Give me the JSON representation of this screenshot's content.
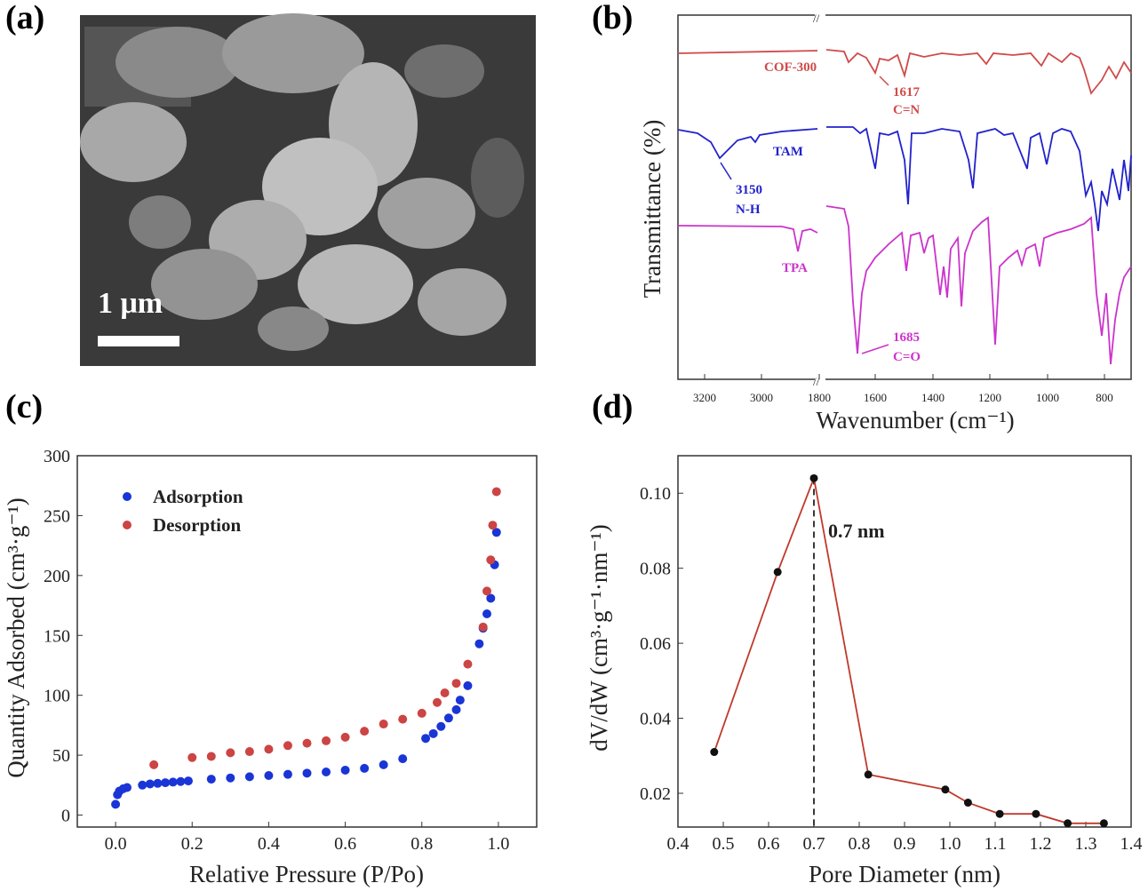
{
  "panels": {
    "a": {
      "label": "(a)",
      "scale_bar": "1 μm"
    },
    "b": {
      "label": "(b)"
    },
    "c": {
      "label": "(c)"
    },
    "d": {
      "label": "(d)"
    }
  },
  "chart_data": [
    {
      "panel": "b",
      "type": "line",
      "ylabel": "Transmittance (%)",
      "xlabel": "Wavenumber (cm⁻¹)",
      "axis_break": "//",
      "x_ticks_left": [
        "3200",
        "3000",
        "1800"
      ],
      "x_ticks_right": [
        "1600",
        "1400",
        "1200",
        "1000",
        "800"
      ],
      "series": [
        {
          "name": "COF-300",
          "color": "#d04a4a",
          "annotations": [
            {
              "text": "1617",
              "sub": "C=N"
            }
          ]
        },
        {
          "name": "TAM",
          "color": "#2222cc",
          "annotations": [
            {
              "text": "3150",
              "sub": "N-H"
            }
          ]
        },
        {
          "name": "TPA",
          "color": "#cc33cc",
          "annotations": [
            {
              "text": "1685",
              "sub": "C=O"
            }
          ]
        }
      ]
    },
    {
      "panel": "c",
      "type": "scatter",
      "xlabel": "Relative Pressure (P/Po)",
      "ylabel": "Quantity Adsorbed (cm³·g⁻¹)",
      "xlim": [
        -0.1,
        1.1
      ],
      "ylim": [
        -10,
        300
      ],
      "x_ticks": [
        "0.0",
        "0.2",
        "0.4",
        "0.6",
        "0.8",
        "1.0"
      ],
      "y_ticks": [
        "0",
        "50",
        "100",
        "150",
        "200",
        "250",
        "300"
      ],
      "legend_position": "top-left",
      "series": [
        {
          "name": "Adsorption",
          "color": "#1a35d6",
          "points": [
            [
              0.0,
              9
            ],
            [
              0.005,
              17
            ],
            [
              0.01,
              20
            ],
            [
              0.02,
              22
            ],
            [
              0.03,
              23
            ],
            [
              0.07,
              25
            ],
            [
              0.09,
              26
            ],
            [
              0.11,
              26.5
            ],
            [
              0.13,
              27
            ],
            [
              0.15,
              27.5
            ],
            [
              0.17,
              28
            ],
            [
              0.19,
              28.5
            ],
            [
              0.25,
              30
            ],
            [
              0.3,
              31
            ],
            [
              0.35,
              32
            ],
            [
              0.4,
              33
            ],
            [
              0.45,
              34
            ],
            [
              0.5,
              35
            ],
            [
              0.55,
              36
            ],
            [
              0.6,
              37.5
            ],
            [
              0.65,
              39
            ],
            [
              0.7,
              42
            ],
            [
              0.75,
              47
            ],
            [
              0.81,
              64
            ],
            [
              0.83,
              68
            ],
            [
              0.85,
              74
            ],
            [
              0.87,
              81
            ],
            [
              0.89,
              88
            ],
            [
              0.9,
              96
            ],
            [
              0.92,
              108
            ],
            [
              0.95,
              143
            ],
            [
              0.96,
              156
            ],
            [
              0.97,
              168
            ],
            [
              0.98,
              181
            ],
            [
              0.99,
              209
            ],
            [
              0.995,
              236
            ]
          ]
        },
        {
          "name": "Desorption",
          "color": "#cc4444",
          "points": [
            [
              0.1,
              42
            ],
            [
              0.2,
              48
            ],
            [
              0.25,
              49
            ],
            [
              0.3,
              52
            ],
            [
              0.35,
              53
            ],
            [
              0.4,
              55
            ],
            [
              0.45,
              58
            ],
            [
              0.5,
              60
            ],
            [
              0.55,
              62
            ],
            [
              0.6,
              65
            ],
            [
              0.65,
              70
            ],
            [
              0.7,
              76
            ],
            [
              0.75,
              80
            ],
            [
              0.8,
              85
            ],
            [
              0.84,
              94
            ],
            [
              0.86,
              102
            ],
            [
              0.89,
              110
            ],
            [
              0.92,
              126
            ],
            [
              0.96,
              157
            ],
            [
              0.97,
              187
            ],
            [
              0.98,
              213
            ],
            [
              0.985,
              242
            ],
            [
              0.995,
              270
            ]
          ]
        }
      ]
    },
    {
      "panel": "d",
      "type": "line",
      "xlabel": "Pore Diameter (nm)",
      "ylabel": "dV/dW (cm³·g⁻¹·nm⁻¹)",
      "xlim": [
        0.4,
        1.4
      ],
      "ylim": [
        0.011,
        0.11
      ],
      "x_ticks": [
        "0.4",
        "0.5",
        "0.6",
        "0.7",
        "0.8",
        "0.9",
        "1.0",
        "1.1",
        "1.2",
        "1.3",
        "1.4"
      ],
      "y_ticks": [
        "0.02",
        "0.04",
        "0.06",
        "0.08",
        "0.10"
      ],
      "peak_label": "0.7 nm",
      "peak_x": 0.7,
      "series": [
        {
          "name": "",
          "color": "#c0392b",
          "points": [
            [
              0.48,
              0.031
            ],
            [
              0.62,
              0.079
            ],
            [
              0.7,
              0.104
            ],
            [
              0.82,
              0.025
            ],
            [
              0.99,
              0.021
            ],
            [
              1.04,
              0.0175
            ],
            [
              1.11,
              0.0145
            ],
            [
              1.19,
              0.0145
            ],
            [
              1.26,
              0.012
            ],
            [
              1.34,
              0.012
            ]
          ]
        }
      ]
    }
  ]
}
